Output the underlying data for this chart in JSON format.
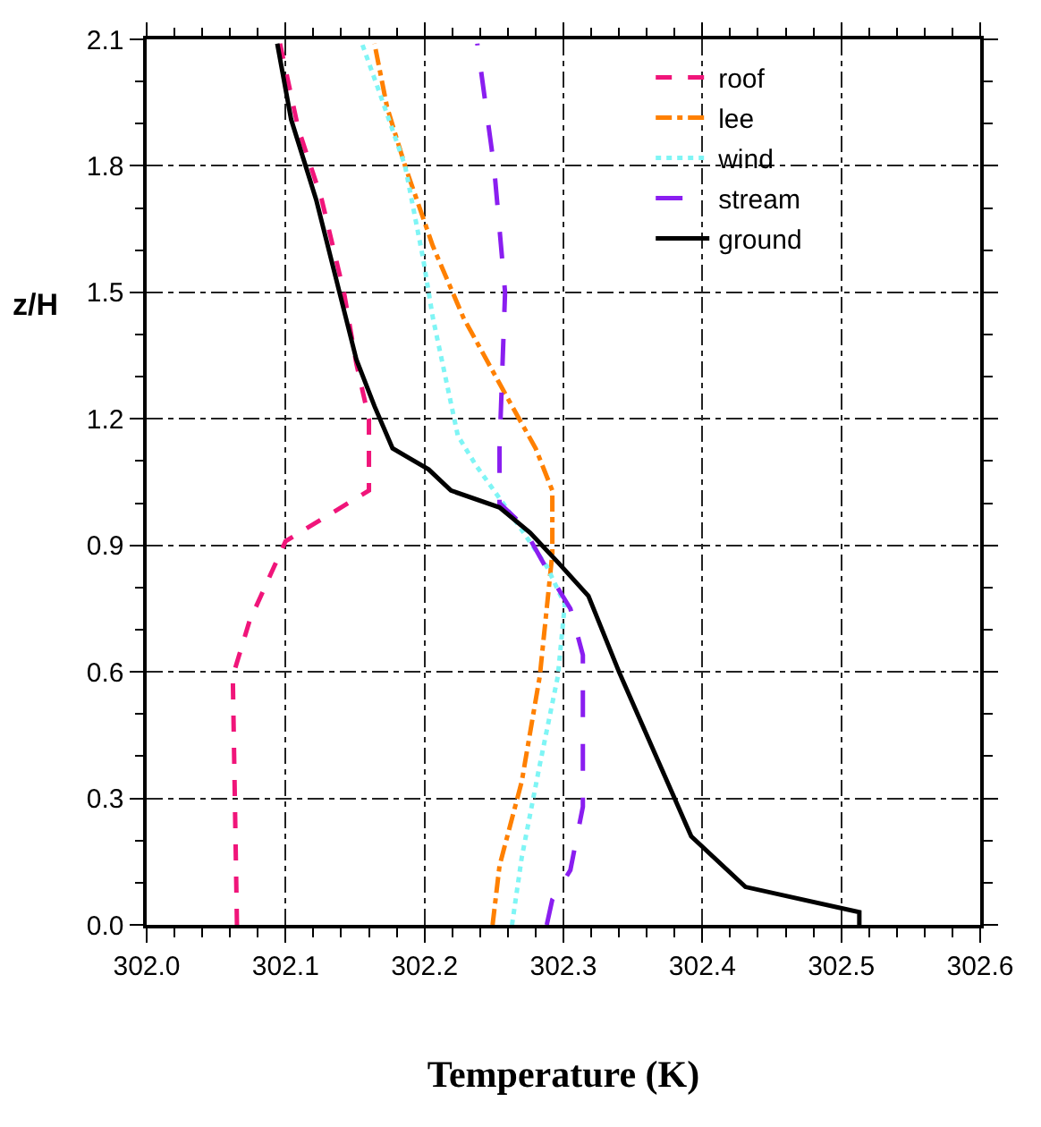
{
  "chart_data": {
    "type": "line",
    "xlabel": "Temperature (K)",
    "ylabel": "z/H",
    "xlim": [
      302.0,
      302.6
    ],
    "xticks": [
      {
        "value": 302.0,
        "label": "302.0"
      },
      {
        "value": 302.1,
        "label": "302.1"
      },
      {
        "value": 302.2,
        "label": "302.2"
      },
      {
        "value": 302.3,
        "label": "302.3"
      },
      {
        "value": 302.4,
        "label": "302.4"
      },
      {
        "value": 302.5,
        "label": "302.5"
      },
      {
        "value": 302.6,
        "label": "302.6"
      }
    ],
    "ylim": [
      0,
      2.1
    ],
    "yticks": [
      {
        "value": 0,
        "label": "0.0"
      },
      0.3,
      0.6,
      0.9,
      1.2,
      1.5,
      1.8,
      2.1
    ],
    "grid": true,
    "legend": "top right",
    "marker": "none",
    "series": [
      {
        "name": "roof",
        "color": "#f0157a",
        "line_style": "dashed",
        "x": [
          302.065,
          302.062,
          302.074,
          302.1,
          302.16,
          302.16,
          302.16,
          302.151,
          302.142,
          302.126,
          302.109,
          302.096
        ],
        "values": [
          0,
          0.59,
          0.72,
          0.91,
          1.03,
          1.12,
          1.2,
          1.33,
          1.5,
          1.72,
          1.89,
          2.09
        ]
      },
      {
        "name": "lee",
        "color": "#ff8000",
        "line_style": "dashdot",
        "x": [
          302.249,
          302.254,
          302.27,
          302.283,
          302.292,
          302.292,
          302.28,
          302.258,
          302.228,
          302.206,
          302.186,
          302.173,
          302.164
        ],
        "values": [
          0,
          0.14,
          0.34,
          0.59,
          0.88,
          1.03,
          1.13,
          1.26,
          1.44,
          1.61,
          1.8,
          1.94,
          2.09
        ]
      },
      {
        "name": "wind",
        "color": "#7ff5f5",
        "line_style": "dotted",
        "x": [
          302.263,
          302.27,
          302.283,
          302.296,
          302.301,
          302.288,
          302.263,
          302.237,
          302.224,
          302.206,
          302.199,
          302.186,
          302.168,
          302.155
        ],
        "values": [
          0,
          0.16,
          0.38,
          0.59,
          0.76,
          0.85,
          0.97,
          1.09,
          1.16,
          1.44,
          1.58,
          1.8,
          1.97,
          2.09
        ]
      },
      {
        "name": "stream",
        "color": "#8a1ef0",
        "line_style": "longdash",
        "x": [
          302.288,
          302.292,
          302.305,
          302.314,
          302.314,
          302.305,
          302.292,
          302.27,
          302.254,
          302.254,
          302.258,
          302.25,
          302.238
        ],
        "values": [
          0,
          0.06,
          0.13,
          0.28,
          0.64,
          0.75,
          0.82,
          0.95,
          1.0,
          1.13,
          1.5,
          1.8,
          2.09
        ]
      },
      {
        "name": "ground",
        "color": "#000000",
        "line_style": "solid",
        "x": [
          302.513,
          302.513,
          302.431,
          302.392,
          302.38,
          302.34,
          302.318,
          302.296,
          302.276,
          302.254,
          302.219,
          302.203,
          302.177,
          302.164,
          302.151,
          302.135,
          302.122,
          302.104,
          302.094
        ],
        "values": [
          0,
          0.03,
          0.09,
          0.21,
          0.3,
          0.6,
          0.78,
          0.86,
          0.93,
          0.99,
          1.03,
          1.08,
          1.13,
          1.23,
          1.34,
          1.55,
          1.72,
          1.91,
          2.09
        ]
      }
    ]
  }
}
